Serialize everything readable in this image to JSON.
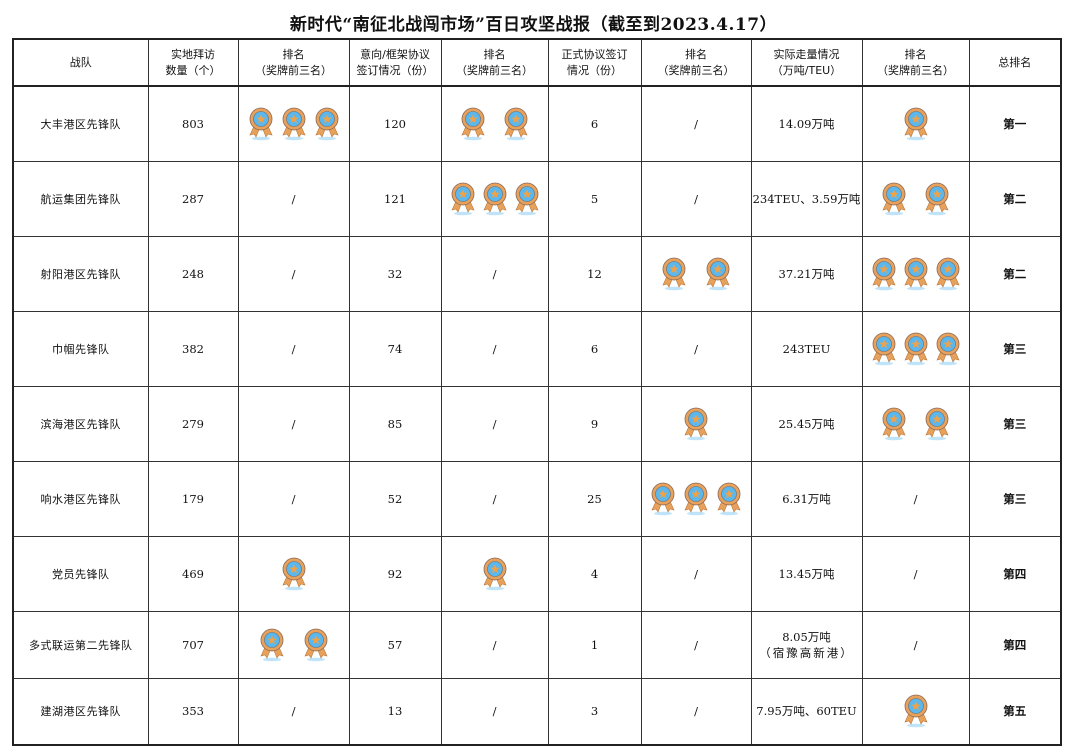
{
  "title": "新时代“南征北战闯市场”百日攻坚战报（截至到2023.4.17）",
  "empty_mark": "/",
  "medal_icon": "rosette-medal-icon",
  "colors": {
    "medal_ring": "#e8a15a",
    "medal_center": "#5cb8ec",
    "medal_star": "#f0a248",
    "medal_shadow": "#bfe3f8"
  },
  "headers": [
    [
      "战队"
    ],
    [
      "实地拜访",
      "数量（个）"
    ],
    [
      "排名",
      "（奖牌前三名）"
    ],
    [
      "意向/框架协议",
      "签订情况（份）"
    ],
    [
      "排名",
      "（奖牌前三名）"
    ],
    [
      "正式协议签订",
      "情况（份）"
    ],
    [
      "排名",
      "（奖牌前三名）"
    ],
    [
      "实际走量情况",
      "（万吨/TEU）"
    ],
    [
      "排名",
      "（奖牌前三名）"
    ],
    [
      "总排名"
    ]
  ],
  "rows": [
    {
      "team": "大丰港区先锋队",
      "visits": "803",
      "visit_medals": 3,
      "intent": "120",
      "intent_medals": 2,
      "formal": "6",
      "formal_medals": 0,
      "volume": [
        "14.09万吨"
      ],
      "volume_medals": 1,
      "overall": "第一"
    },
    {
      "team": "航运集团先锋队",
      "visits": "287",
      "visit_medals": 0,
      "intent": "121",
      "intent_medals": 3,
      "formal": "5",
      "formal_medals": 0,
      "volume": [
        "234TEU、3.59万吨"
      ],
      "volume_medals": 2,
      "overall": "第二"
    },
    {
      "team": "射阳港区先锋队",
      "visits": "248",
      "visit_medals": 0,
      "intent": "32",
      "intent_medals": 0,
      "formal": "12",
      "formal_medals": 2,
      "volume": [
        "37.21万吨"
      ],
      "volume_medals": 3,
      "overall": "第二"
    },
    {
      "team": "巾帼先锋队",
      "visits": "382",
      "visit_medals": 0,
      "intent": "74",
      "intent_medals": 0,
      "formal": "6",
      "formal_medals": 0,
      "volume": [
        "243TEU"
      ],
      "volume_medals": 3,
      "overall": "第三"
    },
    {
      "team": "滨海港区先锋队",
      "visits": "279",
      "visit_medals": 0,
      "intent": "85",
      "intent_medals": 0,
      "formal": "9",
      "formal_medals": 1,
      "volume": [
        "25.45万吨"
      ],
      "volume_medals": 2,
      "overall": "第三"
    },
    {
      "team": "响水港区先锋队",
      "visits": "179",
      "visit_medals": 0,
      "intent": "52",
      "intent_medals": 0,
      "formal": "25",
      "formal_medals": 3,
      "volume": [
        "6.31万吨"
      ],
      "volume_medals": 0,
      "overall": "第三"
    },
    {
      "team": "党员先锋队",
      "visits": "469",
      "visit_medals": 1,
      "intent": "92",
      "intent_medals": 1,
      "formal": "4",
      "formal_medals": 0,
      "volume": [
        "13.45万吨"
      ],
      "volume_medals": 0,
      "overall": "第四"
    },
    {
      "team": "多式联运第二先锋队",
      "visits": "707",
      "visit_medals": 2,
      "intent": "57",
      "intent_medals": 0,
      "formal": "1",
      "formal_medals": 0,
      "volume": [
        "8.05万吨",
        "（宿豫高新港）"
      ],
      "volume_medals": 0,
      "overall": "第四"
    },
    {
      "team": "建湖港区先锋队",
      "visits": "353",
      "visit_medals": 0,
      "intent": "13",
      "intent_medals": 0,
      "formal": "3",
      "formal_medals": 0,
      "volume": [
        "7.95万吨、60TEU"
      ],
      "volume_medals": 1,
      "overall": "第五"
    }
  ]
}
